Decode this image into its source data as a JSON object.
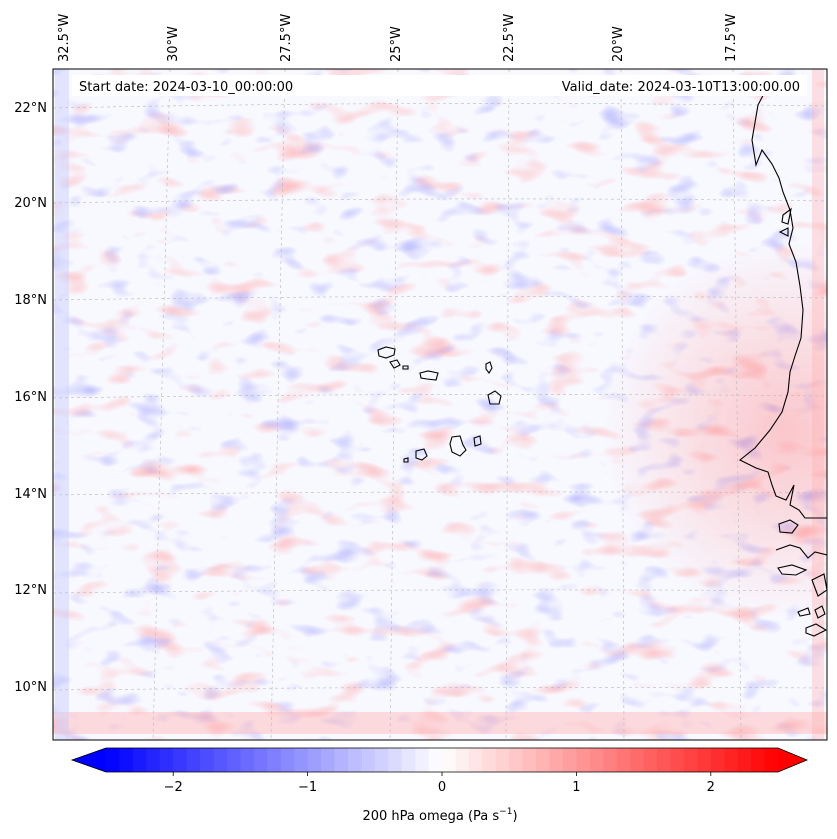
{
  "map": {
    "start_label": "Start date: 2024-03-10_00:00:00",
    "valid_label": "Valid_date: 2024-03-10T13:00:00.00",
    "lon_labels": [
      "32.5°W",
      "30°W",
      "27.5°W",
      "25°W",
      "22.5°W",
      "20°W",
      "17.5°W"
    ],
    "lat_labels": [
      "22°N",
      "20°N",
      "18°N",
      "16°N",
      "14°N",
      "12°N",
      "10°N"
    ],
    "field": "200 hPa omega",
    "gridlines": true
  },
  "colorbar": {
    "label": "200 hPa omega (Pa s",
    "label_sup": "−1",
    "label_close": ")",
    "ticks": [
      "−2",
      "−1",
      "0",
      "1",
      "2"
    ],
    "tick_values": [
      -2,
      -1,
      0,
      1,
      2
    ],
    "vmin": -2.5,
    "vmax": 2.5,
    "extend": "both",
    "colors": {
      "min": "#0000ff",
      "mid": "#ffffff",
      "max": "#ff0000"
    }
  }
}
